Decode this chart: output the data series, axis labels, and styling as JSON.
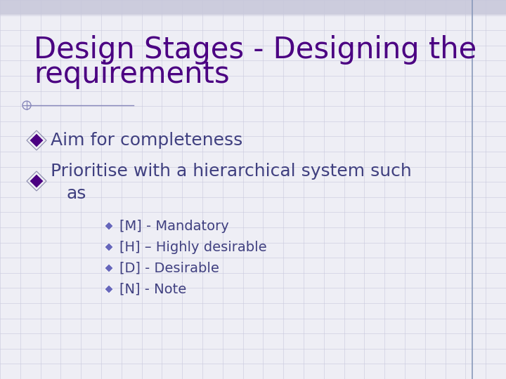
{
  "title_line1": "Design Stages - Designing the",
  "title_line2": "requirements",
  "title_color": "#4B0082",
  "title_fontsize": 30,
  "background_color": "#EEEEF5",
  "grid_color": "#C8C8DC",
  "bullet1_text": "Aim for completeness",
  "bullet2_line1": "Prioritise with a hierarchical system such",
  "bullet2_line2": "as",
  "sub_bullets": [
    "[M] - Mandatory",
    "[H] – Highly desirable",
    "[D] - Desirable",
    "[N] - Note"
  ],
  "bullet_color": "#404080",
  "sub_bullet_color": "#404080",
  "bullet_marker_large_fill": "#4B0082",
  "bullet_marker_large_edge": "#8888AA",
  "bullet_marker_small_fill": "#6666BB",
  "line_color": "#8888BB",
  "border_color": "#8899BB",
  "top_bar_color": "#CCCCDD"
}
